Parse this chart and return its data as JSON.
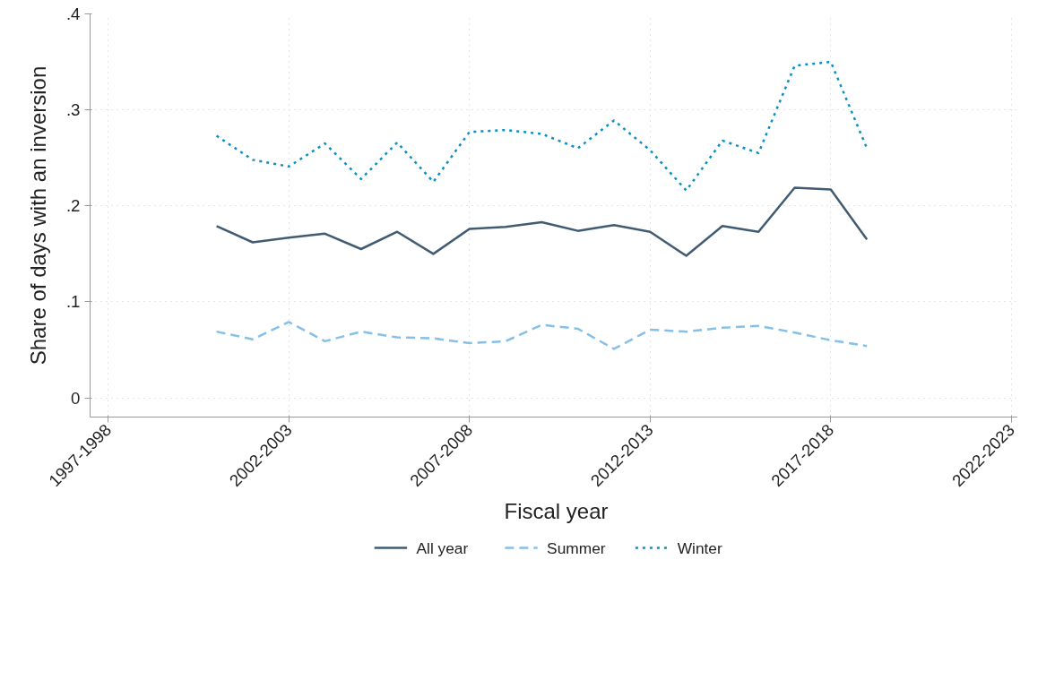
{
  "chart_data": {
    "type": "line",
    "xlabel": "Fiscal year",
    "ylabel": "Share of days with an inversion",
    "categories": [
      "1997-1998",
      null,
      null,
      null,
      null,
      "2002-2003",
      null,
      null,
      null,
      null,
      "2007-2008",
      null,
      null,
      null,
      null,
      "2012-2013",
      null,
      null,
      null,
      null,
      "2017-2018",
      null,
      null,
      null,
      null,
      "2022-2023"
    ],
    "series": [
      {
        "name": "All year",
        "color": "#415c72",
        "line_style": "solid",
        "values": [
          null,
          null,
          null,
          0.179,
          0.162,
          0.167,
          0.171,
          0.155,
          0.173,
          0.15,
          0.176,
          0.178,
          0.183,
          0.174,
          0.18,
          0.173,
          0.148,
          0.179,
          0.173,
          0.219,
          0.217,
          0.165,
          null,
          null,
          null,
          null
        ]
      },
      {
        "name": "Summer",
        "color": "#85c0e8",
        "line_style": "dashed",
        "values": [
          null,
          null,
          null,
          0.069,
          0.061,
          0.079,
          0.059,
          0.069,
          0.063,
          0.062,
          0.057,
          0.059,
          0.076,
          0.072,
          0.051,
          0.071,
          0.069,
          0.073,
          0.075,
          0.068,
          0.06,
          0.054,
          null,
          null,
          null,
          null
        ]
      },
      {
        "name": "Winter",
        "color": "#0a8fc2",
        "line_style": "dotted",
        "values": [
          null,
          null,
          null,
          0.273,
          0.248,
          0.241,
          0.265,
          0.228,
          0.266,
          0.225,
          0.277,
          0.279,
          0.275,
          0.26,
          0.289,
          0.258,
          0.216,
          0.268,
          0.255,
          0.346,
          0.35,
          0.26,
          null,
          null,
          null,
          null
        ]
      }
    ],
    "ylim": [
      -0.02,
      0.4
    ],
    "yticks": [
      {
        "value": 0,
        "label": "0"
      },
      {
        "value": 0.1,
        "label": ".1"
      },
      {
        "value": 0.2,
        "label": ".2"
      },
      {
        "value": 0.3,
        "label": ".3"
      },
      {
        "value": 0.4,
        "label": ".4"
      }
    ],
    "grid": true,
    "legend": "bottom",
    "marker": "none"
  }
}
